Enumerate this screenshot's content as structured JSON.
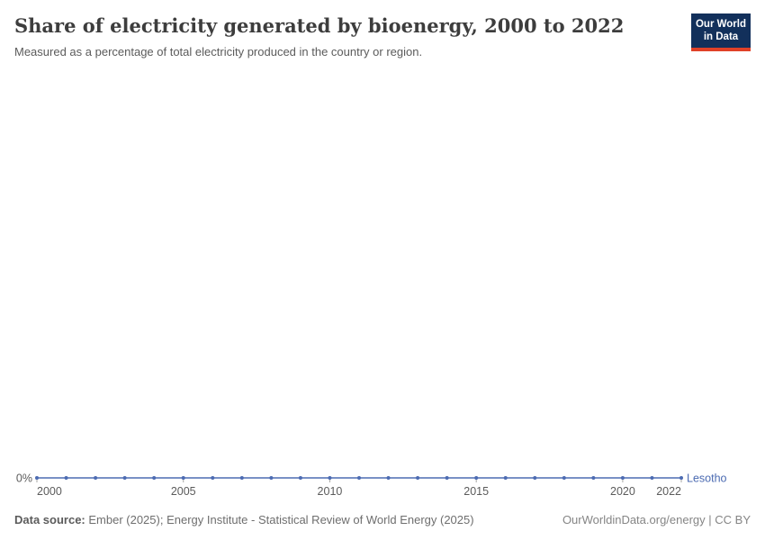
{
  "header": {
    "title": "Share of electricity generated by bioenergy, 2000 to 2022",
    "subtitle": "Measured as a percentage of total electricity produced in the country or region.",
    "logo": {
      "line1": "Our World",
      "line2": "in Data"
    }
  },
  "chart_data": {
    "type": "line",
    "title": "Share of electricity generated by bioenergy, 2000 to 2022",
    "subtitle": "Measured as a percentage of total electricity produced in the country or region.",
    "x": [
      2000,
      2001,
      2002,
      2003,
      2004,
      2005,
      2006,
      2007,
      2008,
      2009,
      2010,
      2011,
      2012,
      2013,
      2014,
      2015,
      2016,
      2017,
      2018,
      2019,
      2020,
      2021,
      2022
    ],
    "series": [
      {
        "name": "Lesotho",
        "unit": "%",
        "color": "#4C6BB2",
        "values": [
          0,
          0,
          0,
          0,
          0,
          0,
          0,
          0,
          0,
          0,
          0,
          0,
          0,
          0,
          0,
          0,
          0,
          0,
          0,
          0,
          0,
          0,
          0
        ]
      }
    ],
    "x_ticks": [
      2000,
      2005,
      2010,
      2015,
      2020,
      2022
    ],
    "y_ticks": [
      "0%"
    ],
    "xlim": [
      2000,
      2022
    ],
    "grid": false,
    "legend": "end-of-line-label",
    "marker": "circle"
  },
  "footer": {
    "source_label": "Data source:",
    "source_text": " Ember (2025); Energy Institute - Statistical Review of World Energy (2025)",
    "attribution": "OurWorldinData.org/energy | CC BY"
  },
  "colors": {
    "series_line": "#4C6BB2",
    "axis_text": "#5b5b5b",
    "axis_tick": "#a7a7a7",
    "logo_navy": "#12305B",
    "logo_red": "#E04128"
  }
}
